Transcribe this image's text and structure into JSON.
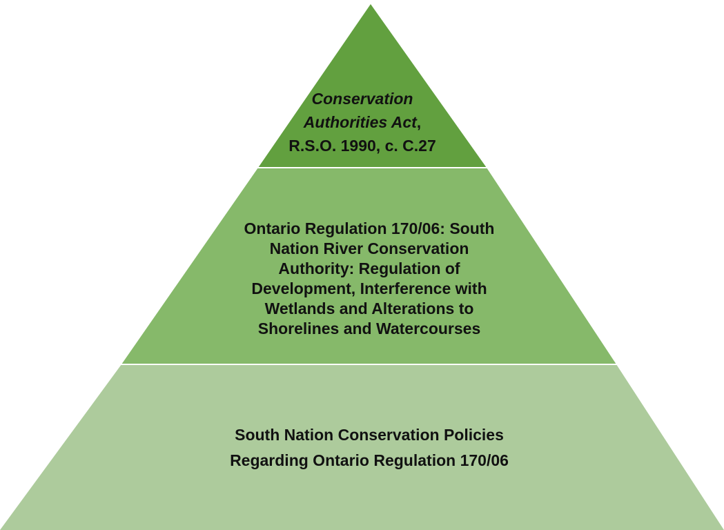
{
  "pyramid": {
    "colors": {
      "top": "#62a03f",
      "middle": "#86b96a",
      "bottom": "#adcb9c",
      "separator": "#ffffff"
    },
    "tiers": [
      {
        "id": "top",
        "lines": [
          {
            "text": "Conservation",
            "italic": true
          },
          {
            "text": "Authorities Act",
            "italic": true,
            "suffix": ","
          },
          {
            "text": "R.S.O. 1990, c. C.27",
            "italic": false
          }
        ]
      },
      {
        "id": "middle",
        "lines": [
          "Ontario Regulation 170/06: South",
          "Nation River Conservation",
          "Authority: Regulation of",
          "Development, Interference with",
          "Wetlands and Alterations to",
          "Shorelines and Watercourses"
        ]
      },
      {
        "id": "bottom",
        "lines": [
          "South Nation Conservation Policies",
          "Regarding Ontario Regulation 170/06"
        ]
      }
    ]
  }
}
